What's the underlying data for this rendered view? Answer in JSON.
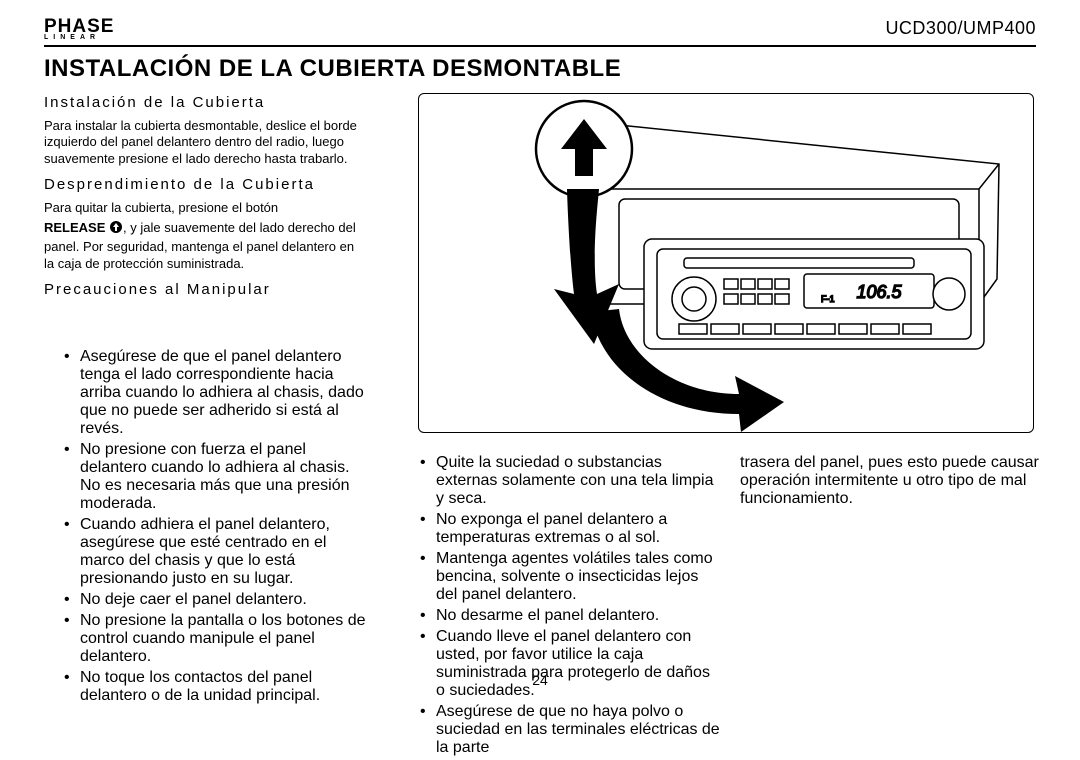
{
  "header": {
    "logo_main": "PHASE",
    "logo_sub": "LINEAR",
    "model": "UCD300/UMP400"
  },
  "title": "INSTALACIÓN DE LA CUBIERTA DESMONTABLE",
  "sections": {
    "install": {
      "heading": "Instalación de la Cubierta",
      "body": "Para instalar la cubierta desmontable, deslice el borde izquierdo del panel delantero dentro del radio, luego suavemente presione el lado derecho hasta trabarlo."
    },
    "detach": {
      "heading": "Desprendimiento de la Cubierta",
      "line1": "Para quitar la cubierta, presione el botón",
      "release": "RELEASE",
      "line2": ", y jale suavemente del lado derecho del panel. Por seguridad, mantenga el panel delantero en la caja de protección suministrada."
    },
    "precautions": {
      "heading": "Precauciones al Manipular",
      "col1": [
        "Asegúrese de que el panel delantero tenga el lado correspondiente hacia arriba cuando lo adhiera al chasis, dado que no puede ser adherido si está al revés.",
        "No presione con fuerza el panel delantero cuando lo adhiera al chasis. No es necesaria más que una presión moderada.",
        "Cuando adhiera el panel delantero, asegúrese que esté centrado en el marco del chasis y que lo está presionando justo en su lugar.",
        "No deje caer el panel delantero.",
        "No presione la pantalla o los botones de control cuando manipule el panel delantero.",
        "No toque los contactos del panel delantero o de la unidad principal."
      ],
      "col2": [
        "Quite la suciedad o substancias externas solamente con una tela limpia y seca.",
        "No exponga el panel delantero a temperaturas extremas o al sol.",
        "Mantenga agentes volátiles tales como bencina, solvente o insecticidas lejos del panel delantero.",
        "No desarme el panel delantero.",
        "Cuando lleve el panel delantero con usted, por favor utilice la caja suministrada para protegerlo de daños o suciedades.",
        "Asegúrese de que no haya polvo o suciedad en las terminales eléctricas de la parte"
      ],
      "col3": [
        "trasera del panel, pues esto puede causar operación intermitente u otro tipo de mal funcionamiento."
      ]
    }
  },
  "illustration": {
    "display_text": "106.5",
    "fm_text": "F-1",
    "arrow1_color": "#000000",
    "arrow2_color": "#000000",
    "circle_fill": "#ffffff",
    "stroke": "#000000"
  },
  "page_number": "24"
}
